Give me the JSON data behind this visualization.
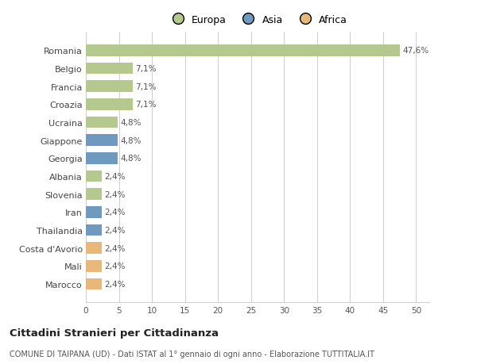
{
  "countries": [
    "Romania",
    "Belgio",
    "Francia",
    "Croazia",
    "Ucraina",
    "Giappone",
    "Georgia",
    "Albania",
    "Slovenia",
    "Iran",
    "Thailandia",
    "Costa d'Avorio",
    "Mali",
    "Marocco"
  ],
  "values": [
    47.6,
    7.1,
    7.1,
    7.1,
    4.8,
    4.8,
    4.8,
    2.4,
    2.4,
    2.4,
    2.4,
    2.4,
    2.4,
    2.4
  ],
  "labels": [
    "47,6%",
    "7,1%",
    "7,1%",
    "7,1%",
    "4,8%",
    "4,8%",
    "4,8%",
    "2,4%",
    "2,4%",
    "2,4%",
    "2,4%",
    "2,4%",
    "2,4%",
    "2,4%"
  ],
  "continents": [
    "Europa",
    "Europa",
    "Europa",
    "Europa",
    "Europa",
    "Asia",
    "Asia",
    "Europa",
    "Europa",
    "Asia",
    "Asia",
    "Africa",
    "Africa",
    "Africa"
  ],
  "colors": {
    "Europa": "#b5c98e",
    "Asia": "#7099bf",
    "Africa": "#e8b87a"
  },
  "xlim": [
    0,
    52
  ],
  "xticks": [
    0,
    5,
    10,
    15,
    20,
    25,
    30,
    35,
    40,
    45,
    50
  ],
  "background_color": "#ffffff",
  "grid_color": "#d0d0d0",
  "title": "Cittadini Stranieri per Cittadinanza",
  "subtitle": "COMUNE DI TAIPANA (UD) - Dati ISTAT al 1° gennaio di ogni anno - Elaborazione TUTTITALIA.IT",
  "bar_height": 0.65,
  "legend_items": [
    "Europa",
    "Asia",
    "Africa"
  ],
  "legend_colors": [
    "#b5c98e",
    "#7099bf",
    "#e8b87a"
  ]
}
